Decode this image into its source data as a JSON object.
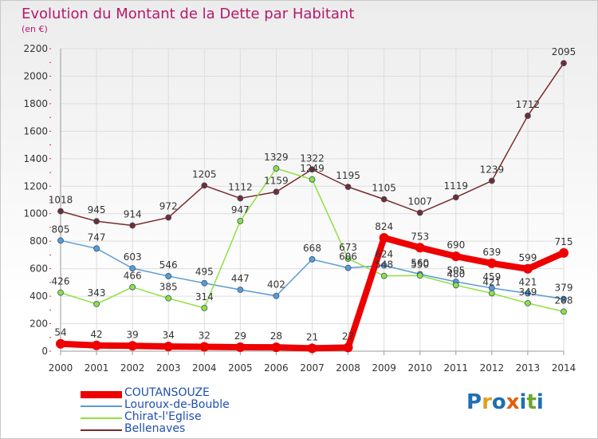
{
  "title": "Evolution du Montant de la Dette par Habitant",
  "unit": "(en €)",
  "logo": {
    "text": "Proxiti",
    "letters": [
      "P",
      "r",
      "o",
      "x",
      "i",
      "t",
      "i"
    ],
    "colors": [
      "#1f6fb2",
      "#e0a020",
      "#1f6fb2",
      "#e06010",
      "#1f6fb2",
      "#6aa82a",
      "#1f6fb2"
    ]
  },
  "chart_data": {
    "type": "line",
    "x": [
      2000,
      2001,
      2002,
      2003,
      2004,
      2005,
      2006,
      2007,
      2008,
      2009,
      2010,
      2011,
      2012,
      2013,
      2014
    ],
    "yticks": [
      0,
      200,
      400,
      600,
      800,
      1000,
      1200,
      1400,
      1600,
      1800,
      2000,
      2200
    ],
    "ylim": [
      0,
      2200
    ],
    "grid": true,
    "legend_position": "bottom-left",
    "series": [
      {
        "name": "COUTANSOUZE",
        "color": "#ee0000",
        "bold": true,
        "values": [
          54,
          42,
          39,
          34,
          32,
          29,
          28,
          21,
          27,
          824,
          753,
          690,
          639,
          599,
          715
        ]
      },
      {
        "name": "Louroux-de-Bouble",
        "color": "#5b9bd5",
        "bold": false,
        "values": [
          805,
          747,
          603,
          546,
          495,
          447,
          402,
          668,
          606,
          624,
          560,
          505,
          459,
          421,
          379
        ]
      },
      {
        "name": "Chirat-l'Eglise",
        "color": "#90e040",
        "bold": false,
        "values": [
          426,
          343,
          466,
          385,
          314,
          947,
          1329,
          1249,
          673,
          548,
          550,
          480,
          421,
          349,
          288
        ]
      },
      {
        "name": "Bellenaves",
        "color": "#7a2a2a",
        "bold": false,
        "values": [
          1018,
          945,
          914,
          972,
          1205,
          1112,
          1159,
          1322,
          1195,
          1105,
          1007,
          1119,
          1239,
          1712,
          2095
        ]
      }
    ]
  }
}
